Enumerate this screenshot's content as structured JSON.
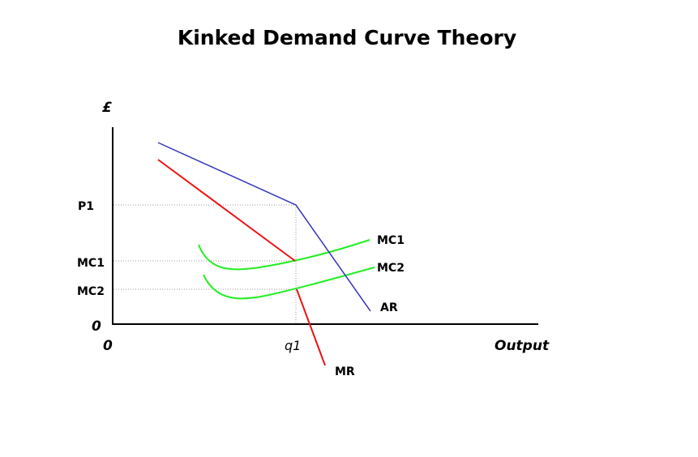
{
  "title": "Kinked Demand Curve Theory",
  "y_axis_label": "£",
  "x_axis_label": "Output",
  "origin_x_label": "0",
  "origin_y_label": "0",
  "price_labels": {
    "p1": "P1",
    "mc1": "MC1",
    "mc2": "MC2"
  },
  "quantity_label": "q1",
  "curve_labels": {
    "mc1": "MC1",
    "mc2": "MC2",
    "ar": "AR",
    "mr": "MR"
  },
  "colors": {
    "ar": "#3333bb",
    "mr": "#ee1111",
    "mc": "#22ee22",
    "axis": "#000000"
  }
}
